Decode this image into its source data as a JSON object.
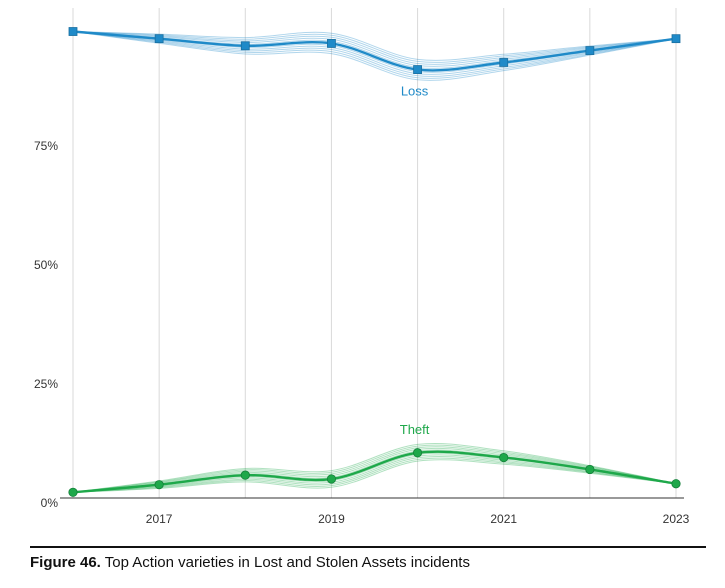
{
  "chart_data": {
    "type": "line",
    "x": [
      2016,
      2017,
      2018,
      2019,
      2020,
      2021,
      2022,
      2023
    ],
    "x_tick_labels": [
      "2017",
      "2019",
      "2021",
      "2023"
    ],
    "y_tick_labels": [
      "0%",
      "25%",
      "50%",
      "75%"
    ],
    "ylim": [
      0,
      100
    ],
    "grid": "vertical",
    "series": [
      {
        "name": "Loss",
        "color": "#1f8ac8",
        "values": [
          98,
          96.5,
          95,
          95.5,
          90,
          91.5,
          94,
          96.5
        ]
      },
      {
        "name": "Theft",
        "color": "#1ea84a",
        "values": [
          1.2,
          2.8,
          4.8,
          4.0,
          9.5,
          8.5,
          6.0,
          3.0
        ]
      }
    ]
  },
  "caption": {
    "label": "Figure 46.",
    "text": " Top Action varieties in Lost and Stolen Assets incidents"
  }
}
